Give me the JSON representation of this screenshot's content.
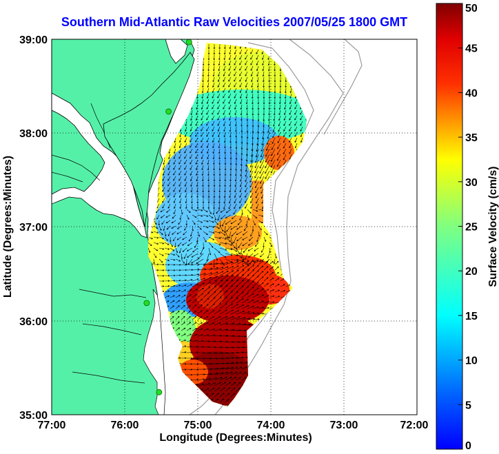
{
  "title": "Southern Mid-Atlantic Raw Velocities 2007/05/25 1800 GMT",
  "map": {
    "xlabel": "Longitude (Degrees:Minutes)",
    "ylabel": "Latitude (Degrees:Minutes)",
    "lon_range": [
      -77,
      -72
    ],
    "lat_range": [
      35,
      39
    ],
    "x_ticks": [
      "77:00",
      "76:00",
      "75:00",
      "74:00",
      "73:00",
      "72:00"
    ],
    "y_ticks": [
      "35:00",
      "36:00",
      "37:00",
      "38:00",
      "39:00"
    ],
    "grid": "dotted",
    "colors": {
      "land": "#55f0a8",
      "coast": "#000000",
      "bathymetry": "#9a9a9a",
      "station": "#22dd22"
    },
    "stations": [
      {
        "lon": -75.12,
        "lat": 38.97
      },
      {
        "lon": -75.4,
        "lat": 38.23
      },
      {
        "lon": -75.7,
        "lat": 36.19
      },
      {
        "lon": -75.53,
        "lat": 35.24
      }
    ]
  },
  "colorbar": {
    "label": "Surface Velocity (cm/s)",
    "unit": "cm/s",
    "min": 0,
    "max": 50,
    "ticks": [
      "0",
      "5",
      "10",
      "15",
      "20",
      "25",
      "30",
      "35",
      "40",
      "45",
      "50"
    ],
    "colormap": "jet"
  },
  "velocity_field": {
    "hot_spots": [
      {
        "lon": -74.15,
        "lat": 37.85,
        "speed": 38
      },
      {
        "lon": -74.0,
        "lat": 37.6,
        "speed": 40
      },
      {
        "lon": -74.55,
        "lat": 36.95,
        "speed": 33
      },
      {
        "lon": -74.9,
        "lat": 36.6,
        "speed": 40
      },
      {
        "lon": -74.4,
        "lat": 36.45,
        "speed": 46
      },
      {
        "lon": -74.75,
        "lat": 36.3,
        "speed": 48
      },
      {
        "lon": -74.5,
        "lat": 35.9,
        "speed": 50
      },
      {
        "lon": -74.8,
        "lat": 35.5,
        "speed": 50
      }
    ],
    "slow_spots": [
      {
        "lon": -74.6,
        "lat": 37.85,
        "speed": 8
      },
      {
        "lon": -75.0,
        "lat": 37.3,
        "speed": 10
      },
      {
        "lon": -75.6,
        "lat": 36.1,
        "speed": 8
      },
      {
        "lon": -74.6,
        "lat": 38.4,
        "speed": 14
      }
    ]
  }
}
